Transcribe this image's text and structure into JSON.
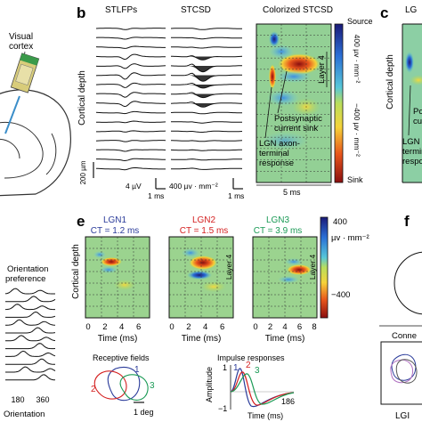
{
  "panel_letters": {
    "b": "b",
    "c": "c",
    "e": "e",
    "f": "f"
  },
  "top_left": {
    "label_line1": "Visual",
    "label_line2": "cortex"
  },
  "panel_b": {
    "titles": {
      "stlfp": "STLFPs",
      "stcsd": "STCSD",
      "colorized": "Colorized STCSD"
    },
    "ylabel": "Cortical depth",
    "scale_depth": "200 µm",
    "scale_uv": "4 µV",
    "scale_ms_1": "1 ms",
    "scale_csd": "400 µv · mm⁻²",
    "scale_ms_2": "1 ms",
    "scale_ms_5": "5 ms",
    "layer": "Layer 4",
    "annot_sink": [
      "Postsynaptic",
      "current sink"
    ],
    "annot_lgn": [
      "LGN axon-",
      "terminal",
      "response"
    ],
    "colorbar": {
      "top": "Source",
      "bottom": "Sink",
      "max": "400 µv · mm⁻²",
      "min": "−400 µv · mm⁻²"
    }
  },
  "panel_c": {
    "ylabel": "Cortical depth",
    "title_partial": "LG",
    "annot_sink_partial": [
      "Po",
      "cu"
    ],
    "annot_lgn_partial": [
      "LGN",
      "termina",
      "respo"
    ]
  },
  "left_mid": {
    "title_line1": "Orientation",
    "title_line2": "preference",
    "ticks": [
      "180",
      "360"
    ],
    "xlabel": "Orientation"
  },
  "panel_e": {
    "lgn": [
      {
        "name": "LGN1",
        "ct": "CT = 1.2 ms",
        "color": "#2a3b9a"
      },
      {
        "name": "LGN2",
        "ct": "CT = 1.5 ms",
        "color": "#d42020"
      },
      {
        "name": "LGN3",
        "ct": "CT = 3.9 ms",
        "color": "#1a9a55"
      }
    ],
    "ylabel": "Cortical depth",
    "xlabel": "Time (ms)",
    "ticks_a": [
      "0",
      "2",
      "4",
      "6"
    ],
    "ticks_b": [
      "0",
      "2",
      "4",
      "6",
      "8"
    ],
    "layer": "Layer 4",
    "colorbar": {
      "max": "400",
      "unit": "µv · mm⁻²",
      "min": "−400"
    },
    "rf": {
      "title": "Receptive fields",
      "labels": [
        "1",
        "2",
        "3"
      ],
      "scale": "1 deg"
    },
    "impulse": {
      "title": "Impulse responses",
      "ylabel": "Amplitude",
      "xlabel": "Time (ms)",
      "yticks": [
        "1",
        "−1"
      ],
      "xtick_end": "186",
      "labels": [
        "1",
        "2",
        "3"
      ]
    }
  },
  "panel_f": {
    "connections_partial": "Conne",
    "bottom_partial": "LGI"
  }
}
